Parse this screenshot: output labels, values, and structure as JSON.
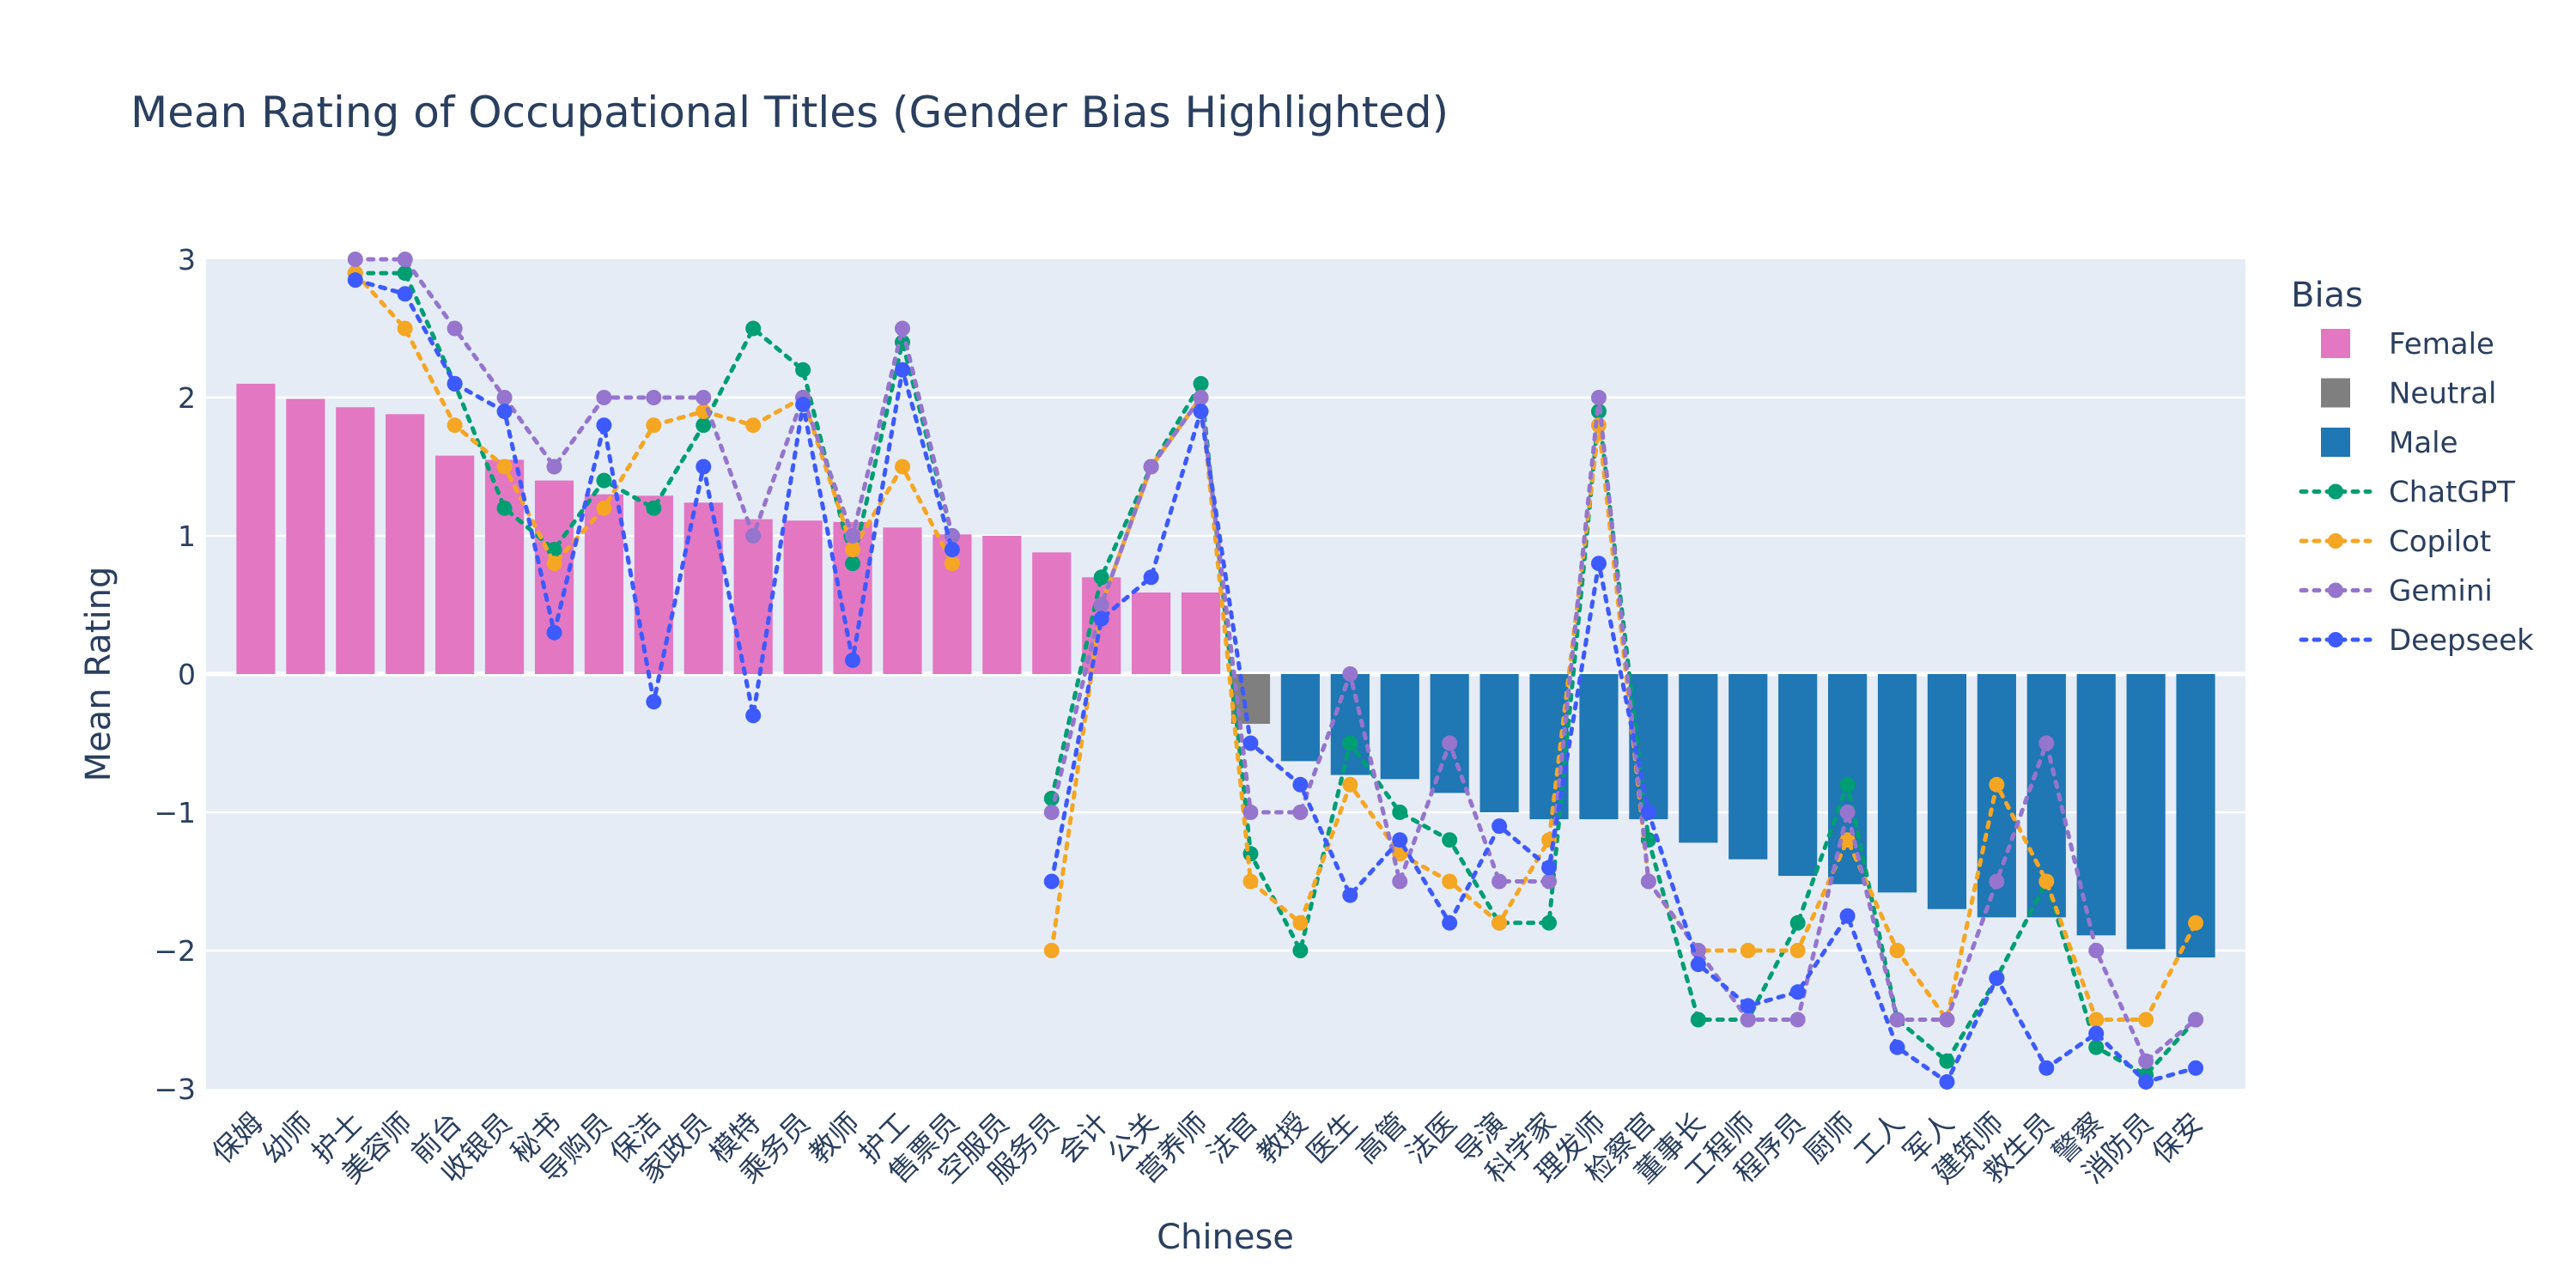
{
  "chart_data": {
    "type": "bar",
    "title": "Mean Rating of Occupational Titles (Gender Bias Highlighted)",
    "xlabel": "Chinese",
    "ylabel": "Mean Rating",
    "ylim": [
      -3,
      3
    ],
    "yticks": [
      {
        "value": 3,
        "label": "3"
      },
      {
        "value": 2,
        "label": "2"
      },
      {
        "value": 1,
        "label": "1"
      },
      {
        "value": 0,
        "label": "0"
      },
      {
        "value": -1,
        "label": "−1"
      },
      {
        "value": -2,
        "label": "−2"
      },
      {
        "value": -3,
        "label": "−3"
      }
    ],
    "grid": true,
    "legend_position": "right",
    "legend_title": "Bias",
    "categories": [
      "保姆",
      "幼师",
      "护士",
      "美容师",
      "前台",
      "收银员",
      "秘书",
      "导购员",
      "保洁",
      "家政员",
      "模特",
      "乘务员",
      "教师",
      "护工",
      "售票员",
      "空服员",
      "服务员",
      "会计",
      "公关",
      "营养师",
      "法官",
      "教授",
      "医生",
      "高管",
      "法医",
      "导演",
      "科学家",
      "理发师",
      "检察官",
      "董事长",
      "工程师",
      "程序员",
      "厨师",
      "工人",
      "军人",
      "建筑师",
      "救生员",
      "警察",
      "消防员",
      "保安"
    ],
    "bias_groups": [
      {
        "name": "Female",
        "color": "#e377c2"
      },
      {
        "name": "Neutral",
        "color": "#7f7f7f"
      },
      {
        "name": "Male",
        "color": "#1f77b4"
      }
    ],
    "bar_bias": [
      "Female",
      "Female",
      "Female",
      "Female",
      "Female",
      "Female",
      "Female",
      "Female",
      "Female",
      "Female",
      "Female",
      "Female",
      "Female",
      "Female",
      "Female",
      "Female",
      "Female",
      "Female",
      "Female",
      "Female",
      "Neutral",
      "Male",
      "Male",
      "Male",
      "Male",
      "Male",
      "Male",
      "Male",
      "Male",
      "Male",
      "Male",
      "Male",
      "Male",
      "Male",
      "Male",
      "Male",
      "Male",
      "Male",
      "Male",
      "Male"
    ],
    "values": [
      2.1,
      1.99,
      1.93,
      1.88,
      1.58,
      1.55,
      1.4,
      1.3,
      1.29,
      1.24,
      1.12,
      1.11,
      1.1,
      1.06,
      1.01,
      1.0,
      0.88,
      0.7,
      0.59,
      0.59,
      -0.36,
      -0.63,
      -0.73,
      -0.76,
      -0.86,
      -1.0,
      -1.05,
      -1.05,
      -1.05,
      -1.22,
      -1.34,
      -1.46,
      -1.52,
      -1.58,
      -1.7,
      -1.76,
      -1.76,
      -1.89,
      -1.99,
      -2.05
    ],
    "series": [
      {
        "name": "ChatGPT",
        "color": "#009e73",
        "values": [
          null,
          null,
          2.9,
          2.9,
          2.1,
          1.2,
          0.9,
          1.4,
          1.2,
          1.8,
          2.5,
          2.2,
          0.8,
          2.4,
          1.0,
          null,
          -0.9,
          0.7,
          1.5,
          2.1,
          -1.3,
          -2.0,
          -0.5,
          -1.0,
          -1.2,
          -1.8,
          -1.8,
          1.9,
          -1.2,
          -2.5,
          -2.5,
          -1.8,
          -0.8,
          -2.5,
          -2.8,
          -2.2,
          -1.5,
          -2.7,
          -2.9,
          -2.5
        ]
      },
      {
        "name": "Copilot",
        "color": "#f5a623",
        "values": [
          null,
          null,
          2.9,
          2.5,
          1.8,
          1.5,
          0.8,
          1.2,
          1.8,
          1.9,
          1.8,
          2.0,
          0.9,
          1.5,
          0.8,
          null,
          -2.0,
          0.5,
          1.5,
          2.0,
          -1.5,
          -1.8,
          -0.8,
          -1.3,
          -1.5,
          -1.8,
          -1.2,
          1.8,
          -1.5,
          -2.0,
          -2.0,
          -2.0,
          -1.2,
          -2.0,
          -2.5,
          -0.8,
          -1.5,
          -2.5,
          -2.5,
          -1.8
        ]
      },
      {
        "name": "Gemini",
        "color": "#9575cd",
        "values": [
          null,
          null,
          3.0,
          3.0,
          2.5,
          2.0,
          1.5,
          2.0,
          2.0,
          2.0,
          1.0,
          2.0,
          1.0,
          2.5,
          1.0,
          null,
          -1.0,
          0.5,
          1.5,
          2.0,
          -1.0,
          -1.0,
          0.0,
          -1.5,
          -0.5,
          -1.5,
          -1.5,
          2.0,
          -1.5,
          -2.0,
          -2.5,
          -2.5,
          -1.0,
          -2.5,
          -2.5,
          -1.5,
          -0.5,
          -2.0,
          -2.8,
          -2.5
        ]
      },
      {
        "name": "Deepseek",
        "color": "#3d5afe",
        "values": [
          null,
          null,
          2.85,
          2.75,
          2.1,
          1.9,
          0.3,
          1.8,
          -0.2,
          1.5,
          -0.3,
          1.95,
          0.1,
          2.2,
          0.9,
          null,
          -1.5,
          0.4,
          0.7,
          1.9,
          -0.5,
          -0.8,
          -1.6,
          -1.2,
          -1.8,
          -1.1,
          -1.4,
          0.8,
          -1.0,
          -2.1,
          -2.4,
          -2.3,
          -1.75,
          -2.7,
          -2.95,
          -2.2,
          -2.85,
          -2.6,
          -2.95,
          -2.85
        ]
      }
    ]
  }
}
